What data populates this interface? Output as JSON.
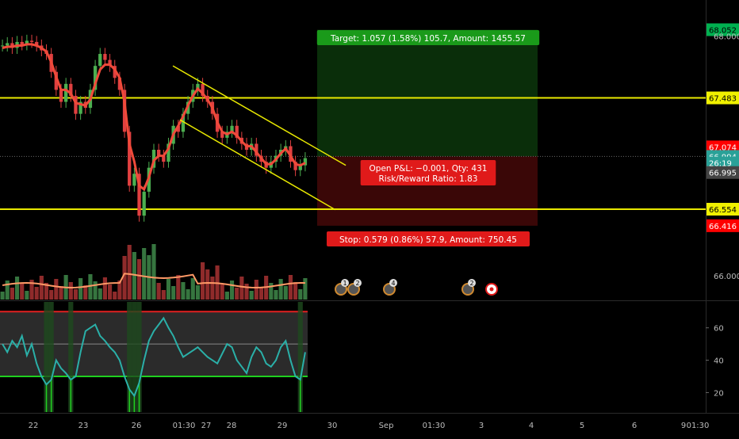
{
  "chart_data": {
    "type": "candlestick",
    "price_axis": {
      "ylim": [
        65.8,
        68.3
      ],
      "ticks": [
        "66.000",
        "68.000"
      ],
      "ticks_values": [
        66.0,
        68.0
      ],
      "labels": [
        {
          "text": "68.052",
          "value": 68.052,
          "color": "#00b050"
        },
        {
          "text": "67.483",
          "value": 67.483,
          "color": "#f0f000"
        },
        {
          "text": "67.074",
          "value": 67.074,
          "color": "#ff0000"
        },
        {
          "text": "66.994",
          "value": 66.994,
          "color": "#2aa198"
        },
        {
          "text": "26:19",
          "value": 66.94,
          "color": "#2aa198"
        },
        {
          "text": "66.995",
          "value": 66.86,
          "color": "#444444"
        },
        {
          "text": "66.554",
          "value": 66.554,
          "color": "#f0f000"
        },
        {
          "text": "66.416",
          "value": 66.416,
          "color": "#ff0000"
        }
      ]
    },
    "horizontal_lines": [
      67.483,
      66.554
    ],
    "trade": {
      "target_label": "Target: 1.057 (1.58%) 105.7, Amount: 1455.57",
      "stop_label": "Stop: 0.579 (0.86%) 57.9, Amount: 750.45",
      "open_label_line1": "Open P&L: −0.001, Qty: 431",
      "open_label_line2": "Risk/Reward Ratio: 1.83",
      "entry": 66.995,
      "target": 68.052,
      "stop": 66.416
    },
    "price_series": [
      67.92,
      67.94,
      67.9,
      67.95,
      67.93,
      67.96,
      67.95,
      67.92,
      67.88,
      67.85,
      67.7,
      67.55,
      67.45,
      67.6,
      67.5,
      67.35,
      67.45,
      67.4,
      67.55,
      67.75,
      67.85,
      67.8,
      67.75,
      67.65,
      67.55,
      67.2,
      66.75,
      66.85,
      66.5,
      66.7,
      66.9,
      67.05,
      67.0,
      66.95,
      67.1,
      67.25,
      67.2,
      67.35,
      67.45,
      67.55,
      67.6,
      67.5,
      67.45,
      67.35,
      67.2,
      67.15,
      67.2,
      67.25,
      67.15,
      67.1,
      67.05,
      67.1,
      67.0,
      66.95,
      66.9,
      66.95,
      67.0,
      67.05,
      67.08,
      66.95,
      66.88,
      66.92,
      66.98
    ],
    "ma_series": [
      67.9,
      67.91,
      67.91,
      67.92,
      67.92,
      67.93,
      67.93,
      67.92,
      67.9,
      67.87,
      67.78,
      67.66,
      67.55,
      67.55,
      67.52,
      67.44,
      67.43,
      67.42,
      67.47,
      67.6,
      67.72,
      67.76,
      67.76,
      67.72,
      67.65,
      67.45,
      67.1,
      66.95,
      66.75,
      66.72,
      66.82,
      66.96,
      67.0,
      67.0,
      67.06,
      67.18,
      67.25,
      67.33,
      67.42,
      67.5,
      67.56,
      67.52,
      67.47,
      67.4,
      67.28,
      67.2,
      67.18,
      67.2,
      67.17,
      67.12,
      67.08,
      67.08,
      67.03,
      66.98,
      66.93,
      66.93,
      66.97,
      67.02,
      67.06,
      67.0,
      66.93,
      66.92,
      66.94
    ],
    "channel": {
      "upper": [
        {
          "x": 0.245,
          "y": 67.75
        },
        {
          "x": 0.49,
          "y": 66.92
        }
      ],
      "lower": [
        {
          "x": 0.255,
          "y": 67.3
        },
        {
          "x": 0.475,
          "y": 66.55
        }
      ]
    },
    "volume_label": "66.000",
    "events": [
      "1",
      "2",
      "4",
      "2",
      ""
    ],
    "oscillator": {
      "ticks": [
        "60",
        "40",
        "20"
      ],
      "tick_values": [
        60,
        40,
        20
      ],
      "ylim": [
        8,
        76
      ],
      "upper_band": 70,
      "lower_band": 30,
      "mid": 50,
      "values": [
        50,
        45,
        52,
        48,
        55,
        43,
        50,
        38,
        30,
        25,
        28,
        40,
        35,
        32,
        28,
        30,
        45,
        58,
        60,
        62,
        55,
        52,
        48,
        45,
        40,
        30,
        22,
        18,
        26,
        40,
        52,
        58,
        62,
        66,
        60,
        55,
        48,
        42,
        44,
        46,
        48,
        45,
        42,
        40,
        38,
        44,
        50,
        48,
        40,
        36,
        32,
        42,
        48,
        45,
        38,
        36,
        40,
        48,
        52,
        40,
        30,
        28,
        45
      ]
    },
    "time_axis": [
      "22",
      "23",
      "26",
      "01:30",
      "27",
      "28",
      "29",
      "30",
      "Sep",
      "01:30",
      "3",
      "4",
      "5",
      "6",
      "9",
      "01:30"
    ]
  }
}
